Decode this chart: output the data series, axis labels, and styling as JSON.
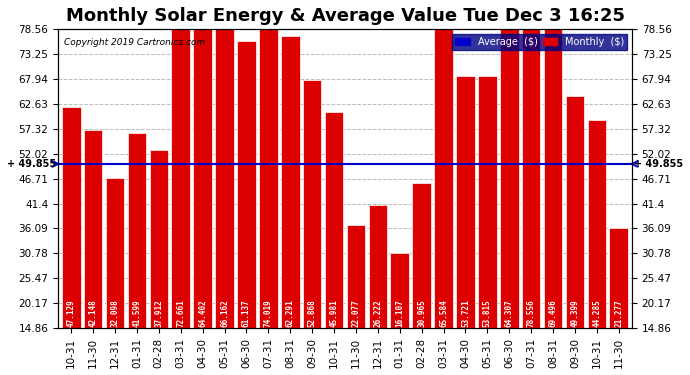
{
  "title": "Monthly Solar Energy & Average Value Tue Dec 3 16:25",
  "copyright": "Copyright 2019 Cartronics.com",
  "categories": [
    "10-31",
    "11-30",
    "12-31",
    "01-31",
    "02-28",
    "03-31",
    "04-30",
    "05-31",
    "06-30",
    "07-31",
    "08-31",
    "09-30",
    "10-31",
    "11-30",
    "12-31",
    "01-31",
    "02-28",
    "03-31",
    "04-30",
    "05-31",
    "06-30",
    "07-31",
    "08-31",
    "09-30",
    "10-31",
    "11-30"
  ],
  "values": [
    47.129,
    42.148,
    32.098,
    41.599,
    37.912,
    72.661,
    64.402,
    66.162,
    61.137,
    74.019,
    62.291,
    52.868,
    45.981,
    22.077,
    26.222,
    16.107,
    30.965,
    65.584,
    53.721,
    53.815,
    64.307,
    78.556,
    69.496,
    49.399,
    44.285,
    21.277
  ],
  "average": 49.855,
  "bar_color": "#dd0000",
  "average_line_color": "#0000cc",
  "yticks": [
    14.86,
    20.17,
    25.47,
    30.78,
    36.09,
    41.4,
    46.71,
    52.02,
    57.32,
    62.63,
    67.94,
    73.25,
    78.56
  ],
  "ylim": [
    14.86,
    78.56
  ],
  "background_color": "#ffffff",
  "plot_bg_color": "#ffffff",
  "grid_color": "#aaaaaa",
  "legend_avg_color": "#0000cc",
  "legend_monthly_color": "#dd0000",
  "avg_label": "49.855",
  "title_fontsize": 13,
  "tick_fontsize": 7.5,
  "bar_edge_color": "#ffffff"
}
